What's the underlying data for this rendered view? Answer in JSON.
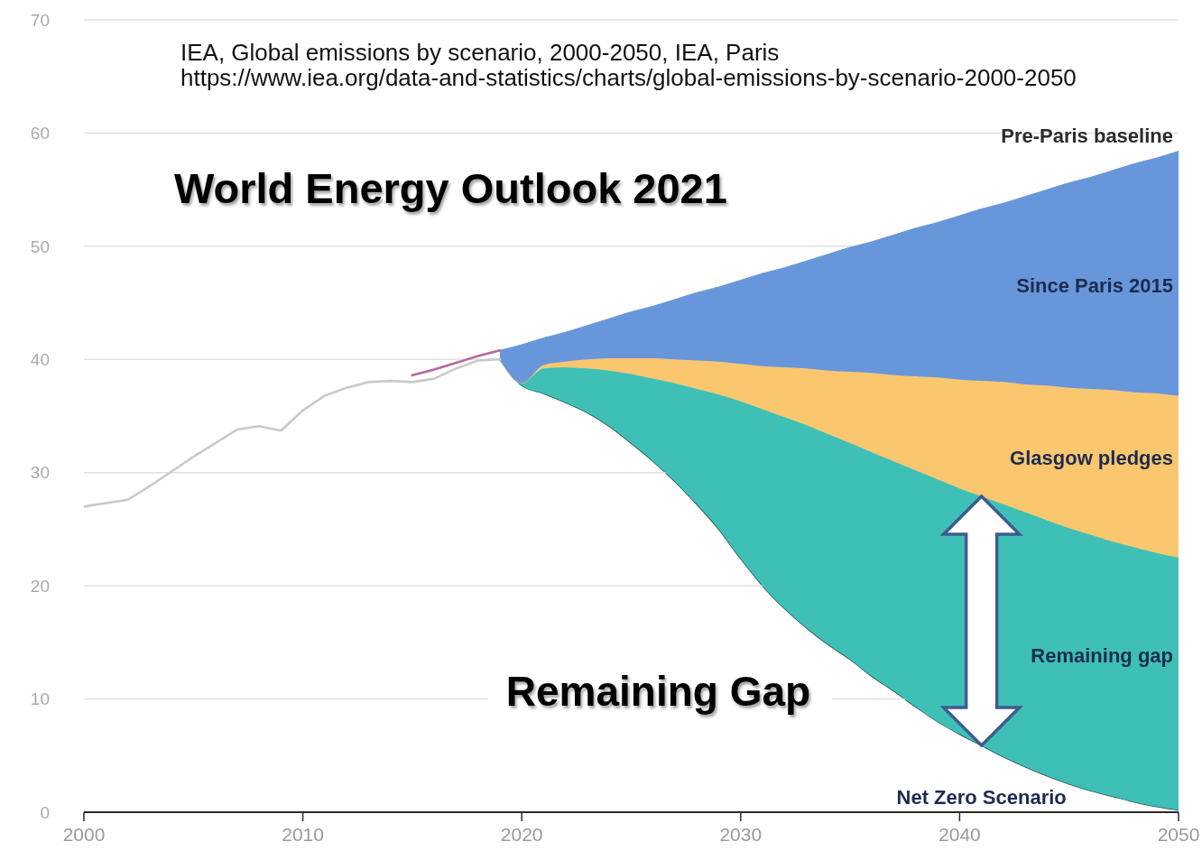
{
  "chart_data": {
    "type": "area",
    "title": "World Energy Outlook 2021",
    "annotations": [
      "IEA, Global emissions by scenario, 2000-2050, IEA, Paris",
      "https://www.iea.org/data-and-statistics/charts/global-emissions-by-scenario-2000-2050",
      "Remaining Gap",
      {
        "text": "Pre-Paris baseline",
        "x": 2050,
        "y": 58.4
      }
    ],
    "x": [
      2000,
      2001,
      2002,
      2003,
      2004,
      2005,
      2006,
      2007,
      2008,
      2009,
      2010,
      2011,
      2012,
      2013,
      2014,
      2015,
      2016,
      2017,
      2018,
      2019,
      2020,
      2021,
      2022,
      2023,
      2024,
      2025,
      2026,
      2027,
      2028,
      2029,
      2030,
      2031,
      2032,
      2033,
      2034,
      2035,
      2036,
      2037,
      2038,
      2039,
      2040,
      2041,
      2042,
      2043,
      2044,
      2045,
      2046,
      2047,
      2048,
      2049,
      2050
    ],
    "stacked": true,
    "series": [
      {
        "name": "Net Zero Scenario",
        "color": "#ffffff",
        "values": [
          null,
          null,
          null,
          null,
          null,
          null,
          null,
          null,
          null,
          null,
          null,
          null,
          null,
          null,
          null,
          null,
          null,
          null,
          null,
          40.0,
          37.7,
          37.0,
          36.2,
          35.3,
          34.1,
          32.6,
          31.0,
          29.2,
          27.2,
          25.0,
          22.4,
          20.0,
          18.0,
          16.3,
          14.8,
          13.5,
          12.0,
          10.7,
          9.3,
          8.0,
          6.9,
          5.9,
          4.9,
          4.0,
          3.2,
          2.5,
          1.9,
          1.4,
          0.9,
          0.5,
          0.2
        ]
      },
      {
        "name": "Remaining gap",
        "color": "#3ec0b6",
        "values": [
          null,
          null,
          null,
          null,
          null,
          null,
          null,
          null,
          null,
          null,
          null,
          null,
          null,
          null,
          null,
          null,
          null,
          null,
          null,
          0,
          0.2,
          2.2,
          3.1,
          3.9,
          4.9,
          6.1,
          7.3,
          8.7,
          10.2,
          11.9,
          13.9,
          15.6,
          16.9,
          17.9,
          18.6,
          19.1,
          19.8,
          20.3,
          20.9,
          21.4,
          21.7,
          22.0,
          22.3,
          22.5,
          22.6,
          22.6,
          22.6,
          22.5,
          22.5,
          22.4,
          22.3
        ]
      },
      {
        "name": "Glasgow pledges",
        "color": "#fbc76e",
        "values": [
          null,
          null,
          null,
          null,
          null,
          null,
          null,
          null,
          null,
          null,
          null,
          null,
          null,
          null,
          null,
          null,
          null,
          null,
          null,
          0,
          0,
          0.3,
          0.5,
          0.8,
          1.1,
          1.4,
          1.8,
          2.1,
          2.5,
          2.9,
          3.3,
          3.8,
          4.4,
          5.0,
          5.6,
          6.3,
          7.0,
          7.6,
          8.3,
          9.0,
          9.6,
          10.2,
          10.8,
          11.3,
          11.9,
          12.4,
          12.9,
          13.4,
          13.7,
          14.1,
          14.3
        ]
      },
      {
        "name": "Since Paris 2015",
        "color": "#6896da",
        "values": [
          null,
          null,
          null,
          null,
          null,
          null,
          null,
          null,
          null,
          null,
          null,
          null,
          null,
          null,
          null,
          null,
          null,
          null,
          null,
          0.8,
          3.4,
          2.4,
          2.6,
          3.0,
          3.5,
          4.1,
          4.6,
          5.3,
          6.0,
          6.6,
          7.4,
          8.2,
          8.8,
          9.5,
          10.3,
          11.0,
          11.6,
          12.4,
          13.1,
          13.7,
          14.5,
          15.2,
          15.8,
          16.6,
          17.3,
          18.1,
          18.7,
          19.4,
          20.2,
          20.8,
          21.6
        ]
      },
      {
        "type": "line",
        "color": "#c9c9c9",
        "values": [
          27.0,
          27.3,
          27.6,
          28.8,
          30.1,
          31.4,
          32.6,
          33.8,
          34.1,
          33.7,
          35.5,
          36.8,
          37.5,
          38.0,
          38.1,
          38.0,
          38.3,
          39.2,
          39.9,
          40.0,
          null,
          null,
          null,
          null,
          null,
          null,
          null,
          null,
          null,
          null,
          null,
          null,
          null,
          null,
          null,
          null,
          null,
          null,
          null,
          null,
          null,
          null,
          null,
          null,
          null,
          null,
          null,
          null,
          null,
          null,
          null
        ]
      },
      {
        "type": "line",
        "color": "#b4679f",
        "values": [
          null,
          null,
          null,
          null,
          null,
          null,
          null,
          null,
          null,
          null,
          null,
          null,
          null,
          null,
          null,
          38.6,
          39.1,
          39.7,
          40.3,
          40.8,
          null,
          null,
          null,
          null,
          null,
          null,
          null,
          null,
          null,
          null,
          null,
          null,
          null,
          null,
          null,
          null,
          null,
          null,
          null,
          null,
          null,
          null,
          null,
          null,
          null,
          null,
          null,
          null,
          null,
          null,
          null
        ]
      }
    ],
    "xlim": [
      2000,
      2050
    ],
    "xticks": [
      2000,
      2010,
      2020,
      2030,
      2040,
      2050
    ],
    "ylim": [
      0,
      70
    ],
    "yticks": [
      0,
      10,
      20,
      30,
      40,
      50,
      60,
      70
    ],
    "grid": "y"
  }
}
